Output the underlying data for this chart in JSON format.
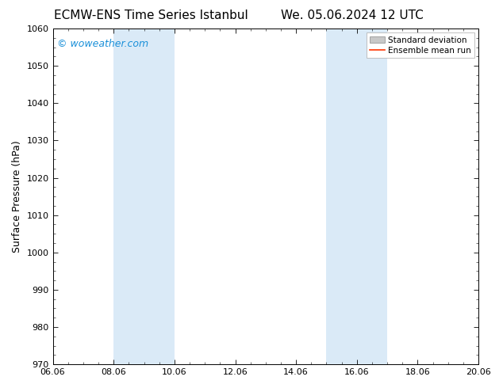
{
  "title_left": "ECMW-ENS Time Series Istanbul",
  "title_right": "We. 05.06.2024 12 UTC",
  "ylabel": "Surface Pressure (hPa)",
  "ylim": [
    970,
    1060
  ],
  "yticks": [
    970,
    980,
    990,
    1000,
    1010,
    1020,
    1030,
    1040,
    1050,
    1060
  ],
  "xtick_labels": [
    "06.06",
    "08.06",
    "10.06",
    "12.06",
    "14.06",
    "16.06",
    "18.06",
    "20.06"
  ],
  "xtick_positions": [
    0,
    2,
    4,
    6,
    8,
    10,
    12,
    14
  ],
  "xlim": [
    0,
    14
  ],
  "shaded_bands": [
    {
      "x_start": 2.0,
      "x_end": 4.0
    },
    {
      "x_start": 9.0,
      "x_end": 11.0
    }
  ],
  "shaded_color": "#daeaf7",
  "watermark_text": "© woweather.com",
  "watermark_color": "#1a90d9",
  "legend_std_label": "Standard deviation",
  "legend_mean_label": "Ensemble mean run",
  "legend_std_color": "#c8c8c8",
  "legend_mean_color": "#ff3300",
  "bg_color": "#ffffff",
  "title_fontsize": 11,
  "axis_label_fontsize": 9,
  "tick_fontsize": 8,
  "legend_fontsize": 7.5,
  "watermark_fontsize": 9
}
